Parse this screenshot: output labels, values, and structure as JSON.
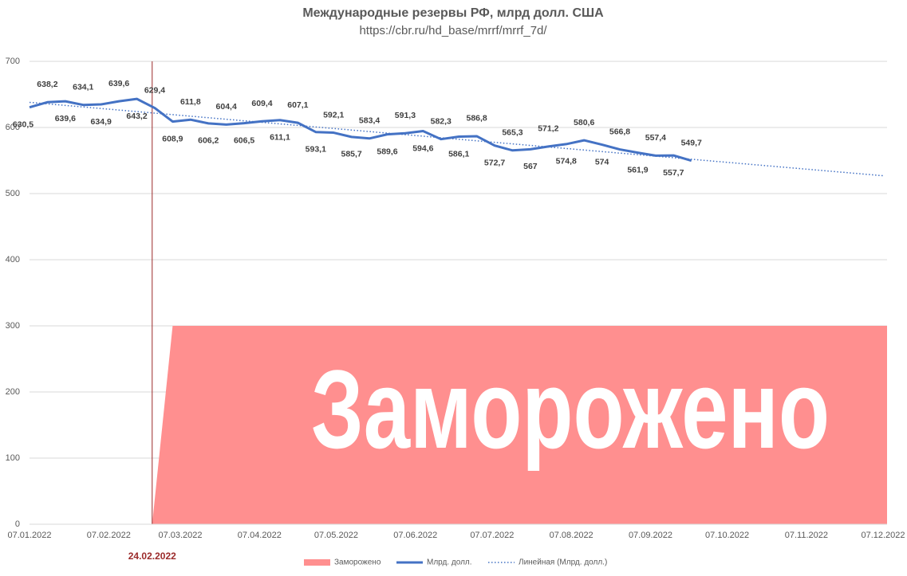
{
  "chart_data": {
    "type": "line",
    "title": "Международные резервы РФ, млрд долл. США",
    "subtitle": "https://cbr.ru/hd_base/mrrf/mrrf_7d/",
    "x": [
      "07.01.2022",
      "14.01.2022",
      "21.01.2022",
      "28.01.2022",
      "04.02.2022",
      "11.02.2022",
      "18.02.2022",
      "25.02.2022",
      "04.03.2022",
      "11.03.2022",
      "18.03.2022",
      "25.03.2022",
      "01.04.2022",
      "08.04.2022",
      "15.04.2022",
      "22.04.2022",
      "29.04.2022",
      "06.05.2022",
      "13.05.2022",
      "20.05.2022",
      "27.05.2022",
      "03.06.2022",
      "10.06.2022",
      "17.06.2022",
      "24.06.2022",
      "01.07.2022",
      "08.07.2022",
      "15.07.2022",
      "22.07.2022",
      "29.07.2022",
      "05.08.2022",
      "12.08.2022",
      "19.08.2022",
      "26.08.2022",
      "02.09.2022",
      "09.09.2022",
      "16.09.2022",
      "23.09.2022"
    ],
    "xlim": [
      "07.01.2022",
      "07.12.2022"
    ],
    "xticks": [
      "07.01.2022",
      "07.02.2022",
      "07.03.2022",
      "07.04.2022",
      "07.05.2022",
      "07.06.2022",
      "07.07.2022",
      "07.08.2022",
      "07.09.2022",
      "07.10.2022",
      "07.11.2022",
      "07.12.2022"
    ],
    "ylim": [
      0,
      700
    ],
    "yticks": [
      0,
      100,
      200,
      300,
      400,
      500,
      600,
      700
    ],
    "grid": true,
    "legend": "bottom",
    "series": [
      {
        "name": "Заморожено",
        "type": "area",
        "color": "#ff8f8f",
        "x": [
          "24.02.2022",
          "04.03.2022",
          "07.12.2022"
        ],
        "values": [
          0,
          300,
          300
        ]
      },
      {
        "name": "Млрд. долл.",
        "type": "line",
        "color": "#4472c4",
        "values": [
          630.5,
          638.2,
          639.6,
          634.1,
          634.9,
          639.6,
          643.2,
          629.4,
          608.9,
          611.8,
          606.2,
          604.4,
          606.5,
          609.4,
          611.1,
          607.1,
          593.1,
          592.1,
          585.7,
          583.4,
          589.6,
          591.3,
          594.6,
          582.3,
          586.1,
          586.8,
          572.7,
          565.3,
          567,
          571.2,
          574.8,
          580.6,
          574,
          566.8,
          561.9,
          557.4,
          557.7,
          549.7
        ],
        "value_labels": [
          "630,5",
          "638,2",
          "639,6",
          "634,1",
          "634,9",
          "639,6",
          "643,2",
          "629,4",
          "608,9",
          "611,8",
          "606,2",
          "604,4",
          "606,5",
          "609,4",
          "611,1",
          "607,1",
          "593,1",
          "592,1",
          "585,7",
          "583,4",
          "589,6",
          "591,3",
          "594,6",
          "582,3",
          "586,1",
          "586,8",
          "572,7",
          "565,3",
          "567",
          "571,2",
          "574,8",
          "580,6",
          "574",
          "566,8",
          "561,9",
          "557,4",
          "557,7",
          "549,7"
        ]
      },
      {
        "name": "Линейная (Млрд. долл.)",
        "type": "trend",
        "color": "#4472c4",
        "dotted": true,
        "x": [
          "07.01.2022",
          "07.12.2022"
        ],
        "values": [
          638,
          527
        ]
      }
    ],
    "annotation": "Заморожено",
    "marker_line": {
      "x": "24.02.2022",
      "color": "#9b2a2a"
    }
  }
}
